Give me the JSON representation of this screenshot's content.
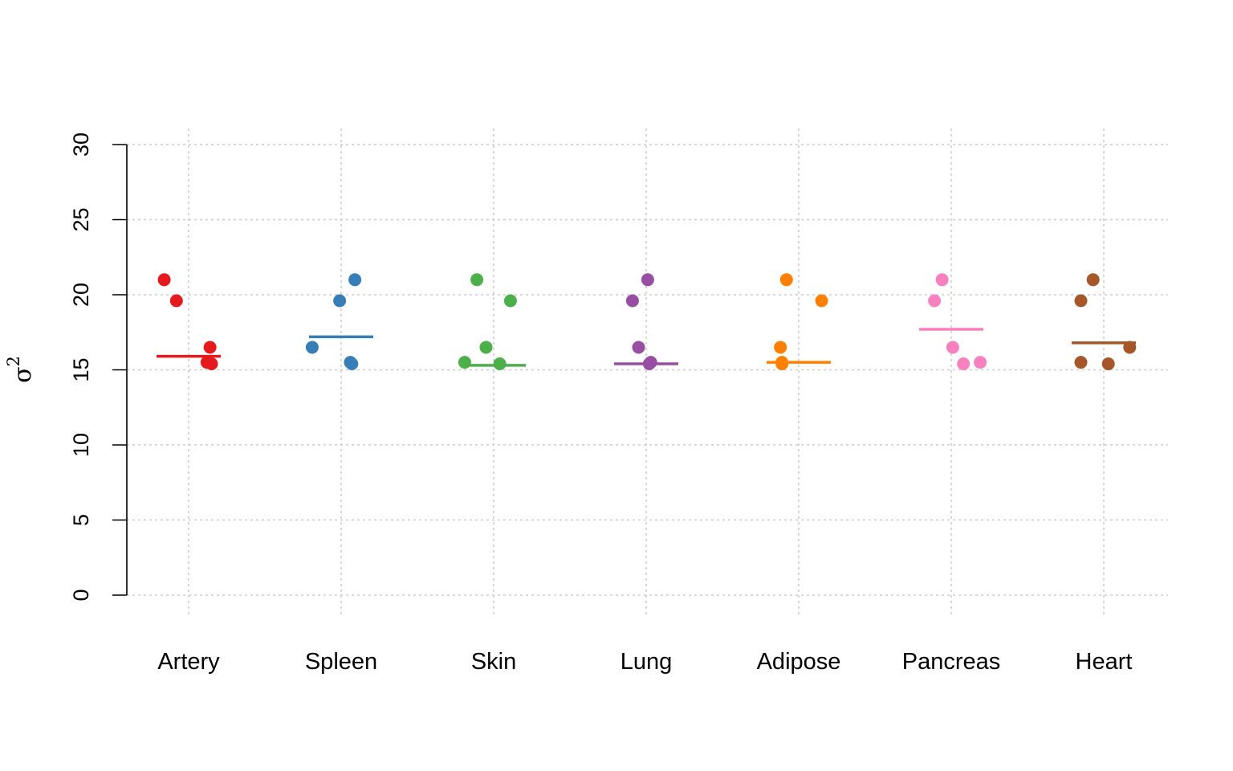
{
  "chart_data": {
    "type": "scatter",
    "title": "",
    "xlabel": "",
    "ylabel": "σ",
    "ylabel_superscript": "2",
    "ylim": [
      0,
      30
    ],
    "yticks": [
      "0",
      "5",
      "10",
      "15",
      "20",
      "25",
      "30"
    ],
    "grid": true,
    "categories": [
      "Artery",
      "Spleen",
      "Skin",
      "Lung",
      "Adipose",
      "Pancreas",
      "Heart"
    ],
    "series": [
      {
        "color": "#E41A1C",
        "points": [
          {
            "dx": -0.16,
            "y": 21.0
          },
          {
            "dx": -0.08,
            "y": 19.6
          },
          {
            "dx": 0.14,
            "y": 16.5
          },
          {
            "dx": 0.12,
            "y": 15.5
          },
          {
            "dx": 0.15,
            "y": 15.4
          }
        ],
        "mean": 15.9
      },
      {
        "color": "#377EB8",
        "points": [
          {
            "dx": 0.09,
            "y": 21.0
          },
          {
            "dx": -0.01,
            "y": 19.6
          },
          {
            "dx": -0.19,
            "y": 16.5
          },
          {
            "dx": 0.06,
            "y": 15.5
          },
          {
            "dx": 0.07,
            "y": 15.4
          }
        ],
        "mean": 17.2
      },
      {
        "color": "#4DAF4A",
        "points": [
          {
            "dx": -0.11,
            "y": 21.0
          },
          {
            "dx": 0.11,
            "y": 19.6
          },
          {
            "dx": -0.05,
            "y": 16.5
          },
          {
            "dx": -0.19,
            "y": 15.5
          },
          {
            "dx": 0.04,
            "y": 15.4
          }
        ],
        "mean": 15.3
      },
      {
        "color": "#984EA3",
        "points": [
          {
            "dx": 0.01,
            "y": 21.0
          },
          {
            "dx": -0.09,
            "y": 19.6
          },
          {
            "dx": -0.05,
            "y": 16.5
          },
          {
            "dx": 0.03,
            "y": 15.5
          },
          {
            "dx": 0.02,
            "y": 15.4
          }
        ],
        "mean": 15.4
      },
      {
        "color": "#FF7F00",
        "points": [
          {
            "dx": -0.08,
            "y": 21.0
          },
          {
            "dx": 0.15,
            "y": 19.6
          },
          {
            "dx": -0.12,
            "y": 16.5
          },
          {
            "dx": -0.11,
            "y": 15.5
          },
          {
            "dx": -0.11,
            "y": 15.4
          }
        ],
        "mean": 15.5
      },
      {
        "color": "#F781BF",
        "points": [
          {
            "dx": -0.06,
            "y": 21.0
          },
          {
            "dx": -0.11,
            "y": 19.6
          },
          {
            "dx": 0.01,
            "y": 16.5
          },
          {
            "dx": 0.19,
            "y": 15.5
          },
          {
            "dx": 0.08,
            "y": 15.4
          }
        ],
        "mean": 17.7
      },
      {
        "color": "#A65628",
        "points": [
          {
            "dx": -0.07,
            "y": 21.0
          },
          {
            "dx": -0.15,
            "y": 19.6
          },
          {
            "dx": 0.17,
            "y": 16.5
          },
          {
            "dx": -0.15,
            "y": 15.5
          },
          {
            "dx": 0.03,
            "y": 15.4
          }
        ],
        "mean": 16.8
      }
    ]
  }
}
